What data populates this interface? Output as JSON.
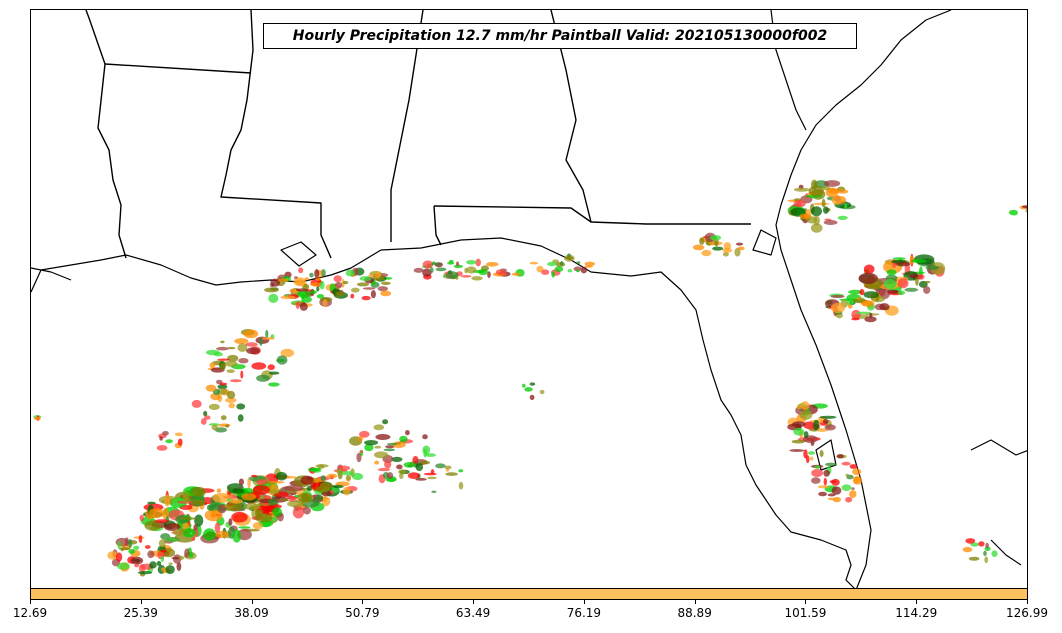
{
  "title": "Hourly Precipitation 12.7 mm/hr Paintball Valid: 202105130000f002",
  "colorbar": {
    "color": "#ffc060",
    "ticks": [
      "12.69",
      "25.39",
      "38.09",
      "50.79",
      "63.49",
      "76.19",
      "88.89",
      "101.59",
      "114.29",
      "126.99"
    ]
  },
  "colors": {
    "member_colors": [
      "#ff8c00",
      "#ffa020",
      "#ff0000",
      "#ff4040",
      "#8b1a1a",
      "#a04040",
      "#00cc00",
      "#33dd33",
      "#006400",
      "#2e8b2e",
      "#808000",
      "#9a9a20"
    ]
  }
}
